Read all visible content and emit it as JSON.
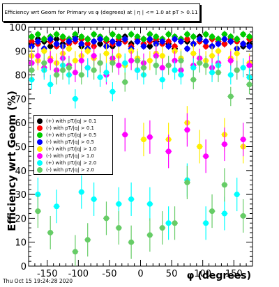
{
  "canvas": {
    "title": "Efficiency wrt Geom for Primary vs φ (degrees) at | η | <= 1.0 at pT > 0.11",
    "timestamp": "Thu Oct 15 19:24:28 2020"
  },
  "chart_data": {
    "type": "scatter",
    "title": "Efficiency wrt Geom for Primary vs φ (degrees) at | η | <= 1.0 at pT > 0.11",
    "xlabel": "φ (degrees)",
    "ylabel": "Efficiency wrt Geom (%)",
    "xlim": [
      -180,
      180
    ],
    "ylim": [
      0,
      100
    ],
    "x_ticks": [
      -150,
      -100,
      -50,
      0,
      50,
      100,
      150
    ],
    "y_ticks": [
      0,
      10,
      20,
      30,
      40,
      50,
      60,
      70,
      80,
      90,
      100
    ],
    "grid": false,
    "legend_position": "left-middle",
    "x": [
      -175,
      -165,
      -155,
      -145,
      -135,
      -125,
      -115,
      -105,
      -95,
      -85,
      -75,
      -65,
      -55,
      -45,
      -35,
      -25,
      -15,
      -5,
      5,
      15,
      25,
      35,
      45,
      55,
      65,
      75,
      85,
      95,
      105,
      115,
      125,
      135,
      145,
      155,
      165,
      175
    ],
    "series": [
      {
        "name": "(+) with pT/|q| > 0.1",
        "color": "#000000",
        "values": [
          93,
          95,
          94,
          92,
          95,
          93,
          94,
          96,
          92,
          95,
          94,
          93,
          95,
          92,
          94,
          96,
          93,
          94,
          95,
          92,
          94,
          95,
          93,
          91,
          95,
          94,
          93,
          96,
          94,
          92,
          95,
          93,
          94,
          95,
          92,
          93
        ]
      },
      {
        "name": "(-) with pT/|q| > 0.1",
        "color": "#ff0000",
        "values": [
          94,
          93,
          95,
          94,
          92,
          95,
          93,
          94,
          95,
          93,
          92,
          95,
          94,
          93,
          95,
          94,
          92,
          95,
          93,
          94,
          95,
          93,
          94,
          92,
          94,
          95,
          93,
          94,
          92,
          95,
          94,
          93,
          95,
          94,
          93,
          95
        ]
      },
      {
        "name": "(+) with pT/|q| > 0.5",
        "color": "#00cc00",
        "values": [
          96,
          97,
          95,
          96,
          97,
          96,
          95,
          97,
          96,
          95,
          97,
          96,
          95,
          97,
          96,
          95,
          97,
          96,
          95,
          97,
          96,
          95,
          97,
          96,
          95,
          97,
          96,
          95,
          97,
          96,
          95,
          97,
          96,
          95,
          97,
          96
        ]
      },
      {
        "name": "(-) with pT/|q| > 0.5",
        "color": "#0000ff",
        "values": [
          92,
          94,
          91,
          95,
          93,
          92,
          94,
          95,
          93,
          91,
          94,
          95,
          92,
          94,
          93,
          95,
          91,
          94,
          92,
          95,
          93,
          94,
          92,
          95,
          94,
          91,
          93,
          95,
          94,
          92,
          93,
          95,
          94,
          91,
          93,
          92
        ]
      },
      {
        "name": "(+) with pT/|q| > 1.0",
        "color": "#ffee00",
        "values": [
          88,
          86,
          90,
          87,
          85,
          89,
          91,
          86,
          88,
          90,
          87,
          85,
          89,
          86,
          88,
          84,
          90,
          87,
          53,
          86,
          89,
          88,
          53,
          90,
          87,
          60,
          89,
          50,
          86,
          88,
          90,
          55,
          87,
          89,
          50,
          85
        ]
      },
      {
        "name": "(-) with pT/|q| > 1.0",
        "color": "#ff00ff",
        "values": [
          85,
          88,
          83,
          86,
          82,
          87,
          84,
          81,
          86,
          83,
          88,
          85,
          80,
          87,
          84,
          55,
          86,
          82,
          85,
          54,
          88,
          83,
          48,
          86,
          82,
          57,
          84,
          87,
          46,
          83,
          85,
          51,
          86,
          82,
          53,
          84
        ]
      },
      {
        "name": "(+) with pT/|q| > 2.0",
        "color": "#00ffff",
        "values": [
          78,
          30,
          82,
          76,
          25,
          84,
          80,
          70,
          31,
          83,
          28,
          79,
          81,
          73,
          26,
          85,
          28,
          82,
          80,
          26,
          84,
          78,
          18,
          82,
          80,
          36,
          83,
          85,
          18,
          81,
          84,
          22,
          80,
          30,
          83,
          79
        ]
      },
      {
        "name": "(-) with pT/|q| > 2.0",
        "color": "#66cc66",
        "values": [
          82,
          23,
          85,
          14,
          80,
          82,
          83,
          6,
          80,
          11,
          82,
          85,
          20,
          85,
          16,
          77,
          10,
          86,
          83,
          13,
          84,
          16,
          84,
          18,
          86,
          35,
          78,
          85,
          84,
          23,
          81,
          34,
          71,
          82,
          21,
          76
        ]
      }
    ]
  }
}
